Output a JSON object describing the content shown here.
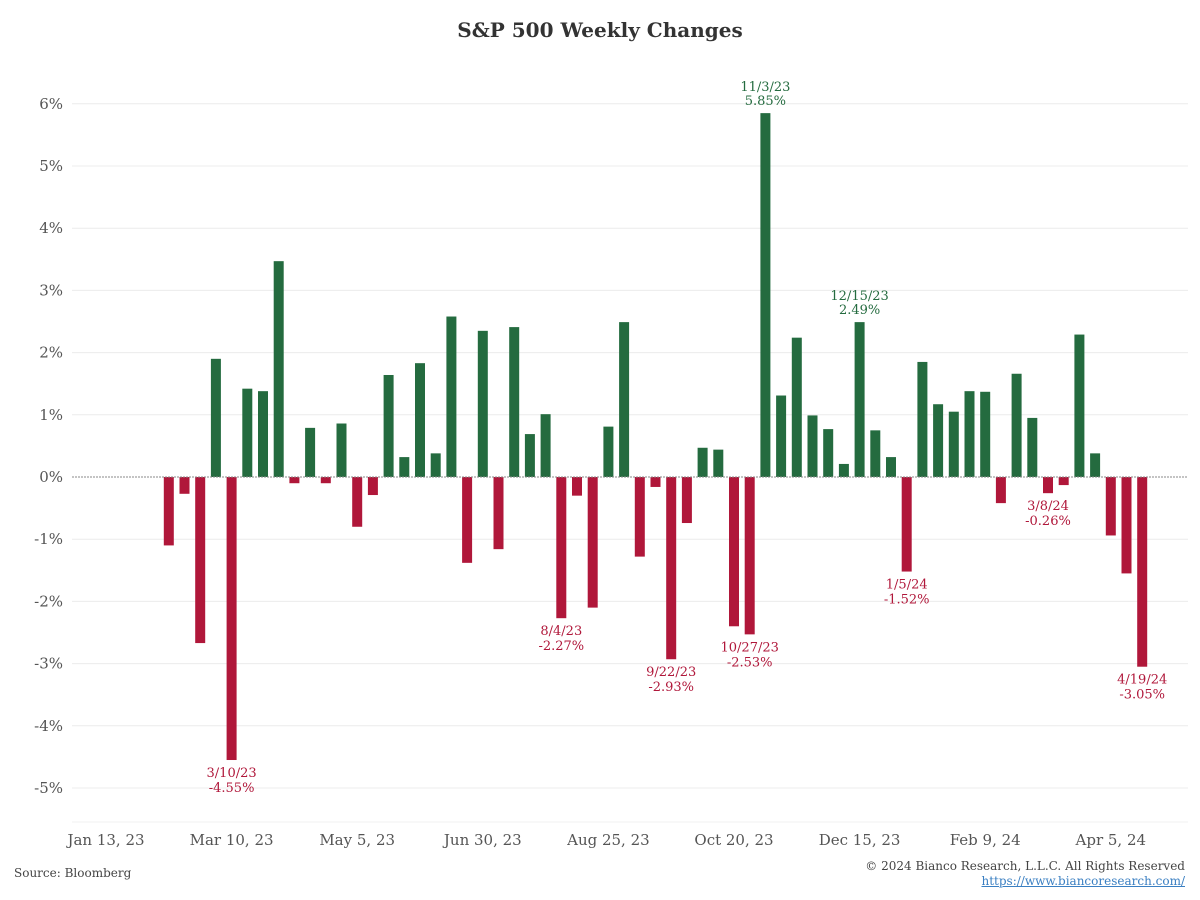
{
  "chart_data": {
    "type": "bar",
    "title": "S&P 500 Weekly Changes",
    "xlabel": "",
    "ylabel": "",
    "ylim": [
      -5.5,
      6.6
    ],
    "yticks": [
      6,
      5,
      4,
      3,
      2,
      1,
      0,
      -1,
      -2,
      -3,
      -4,
      -5
    ],
    "ytick_labels": [
      "6%",
      "5%",
      "4%",
      "3%",
      "2%",
      "1%",
      "0%",
      "-1%",
      "-2%",
      "-3%",
      "-4%",
      "-5%"
    ],
    "x_ticks": [
      {
        "index": 0,
        "label": "Jan 13, 23"
      },
      {
        "index": 8,
        "label": "Mar 10, 23"
      },
      {
        "index": 16,
        "label": "May 5, 23"
      },
      {
        "index": 24,
        "label": "Jun 30, 23"
      },
      {
        "index": 32,
        "label": "Aug 25, 23"
      },
      {
        "index": 40,
        "label": "Oct 20, 23"
      },
      {
        "index": 48,
        "label": "Dec 15, 23"
      },
      {
        "index": 56,
        "label": "Feb 9, 24"
      },
      {
        "index": 64,
        "label": "Apr 5, 24"
      }
    ],
    "positive_color": "#246b3f",
    "negative_color": "#b0173a",
    "values": [
      0.0,
      0.0,
      0.0,
      0.0,
      -1.1,
      -0.27,
      -2.67,
      1.9,
      -4.55,
      1.42,
      1.38,
      3.47,
      -0.1,
      0.79,
      -0.1,
      0.86,
      -0.8,
      -0.29,
      1.64,
      0.32,
      1.83,
      0.38,
      2.58,
      -1.38,
      2.35,
      -1.16,
      2.41,
      0.69,
      1.01,
      -2.27,
      -0.3,
      -2.1,
      0.81,
      2.49,
      -1.28,
      -0.16,
      -2.93,
      -0.74,
      0.47,
      0.44,
      -2.4,
      -2.53,
      5.85,
      1.31,
      2.24,
      0.99,
      0.77,
      0.21,
      2.49,
      0.75,
      0.32,
      -1.52,
      1.85,
      1.17,
      1.05,
      1.38,
      1.37,
      -0.42,
      1.66,
      0.95,
      -0.26,
      -0.13,
      2.29,
      0.38,
      -0.94,
      -1.55,
      -3.05
    ],
    "annotations": [
      {
        "index": 8,
        "date": "3/10/23",
        "value": "-4.55%"
      },
      {
        "index": 29,
        "date": "8/4/23",
        "value": "-2.27%"
      },
      {
        "index": 36,
        "date": "9/22/23",
        "value": "-2.93%"
      },
      {
        "index": 41,
        "date": "10/27/23",
        "value": "-2.53%"
      },
      {
        "index": 42,
        "date": "11/3/23",
        "value": "5.85%"
      },
      {
        "index": 48,
        "date": "12/15/23",
        "value": "2.49%"
      },
      {
        "index": 51,
        "date": "1/5/24",
        "value": "-1.52%"
      },
      {
        "index": 60,
        "date": "3/8/24",
        "value": "-0.26%"
      },
      {
        "index": 66,
        "date": "4/19/24",
        "value": "-3.05%"
      }
    ]
  },
  "footer": {
    "source": "Source: Bloomberg",
    "copyright": "© 2024 Bianco Research, L.L.C. All Rights Reserved",
    "url": "https://www.biancoresearch.com/"
  }
}
